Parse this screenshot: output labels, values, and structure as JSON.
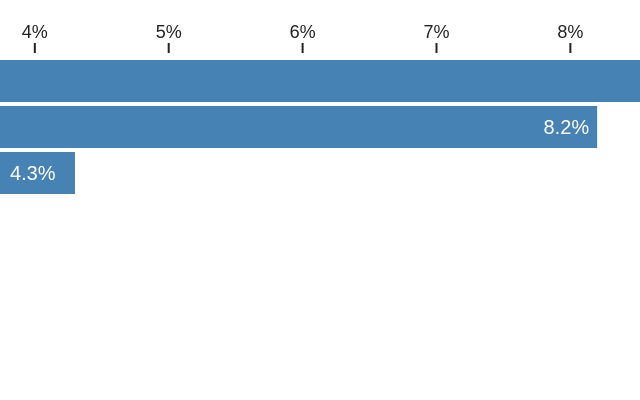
{
  "chart_data": {
    "type": "bar",
    "orientation": "horizontal",
    "categories": [
      "",
      "",
      ""
    ],
    "values": [
      8.6,
      8.2,
      4.3
    ],
    "data_labels": [
      "",
      "8.2%",
      "4.3%"
    ],
    "x_ticks": [
      4,
      5,
      6,
      7,
      8
    ],
    "x_tick_labels": [
      "4%",
      "5%",
      "6%",
      "7%",
      "8%"
    ],
    "xlim": [
      3.74,
      8.52
    ],
    "axis_position": "top",
    "grid": false,
    "legend": "none",
    "bar_color": "#4682b4",
    "title": "",
    "xlabel": "",
    "ylabel": ""
  }
}
